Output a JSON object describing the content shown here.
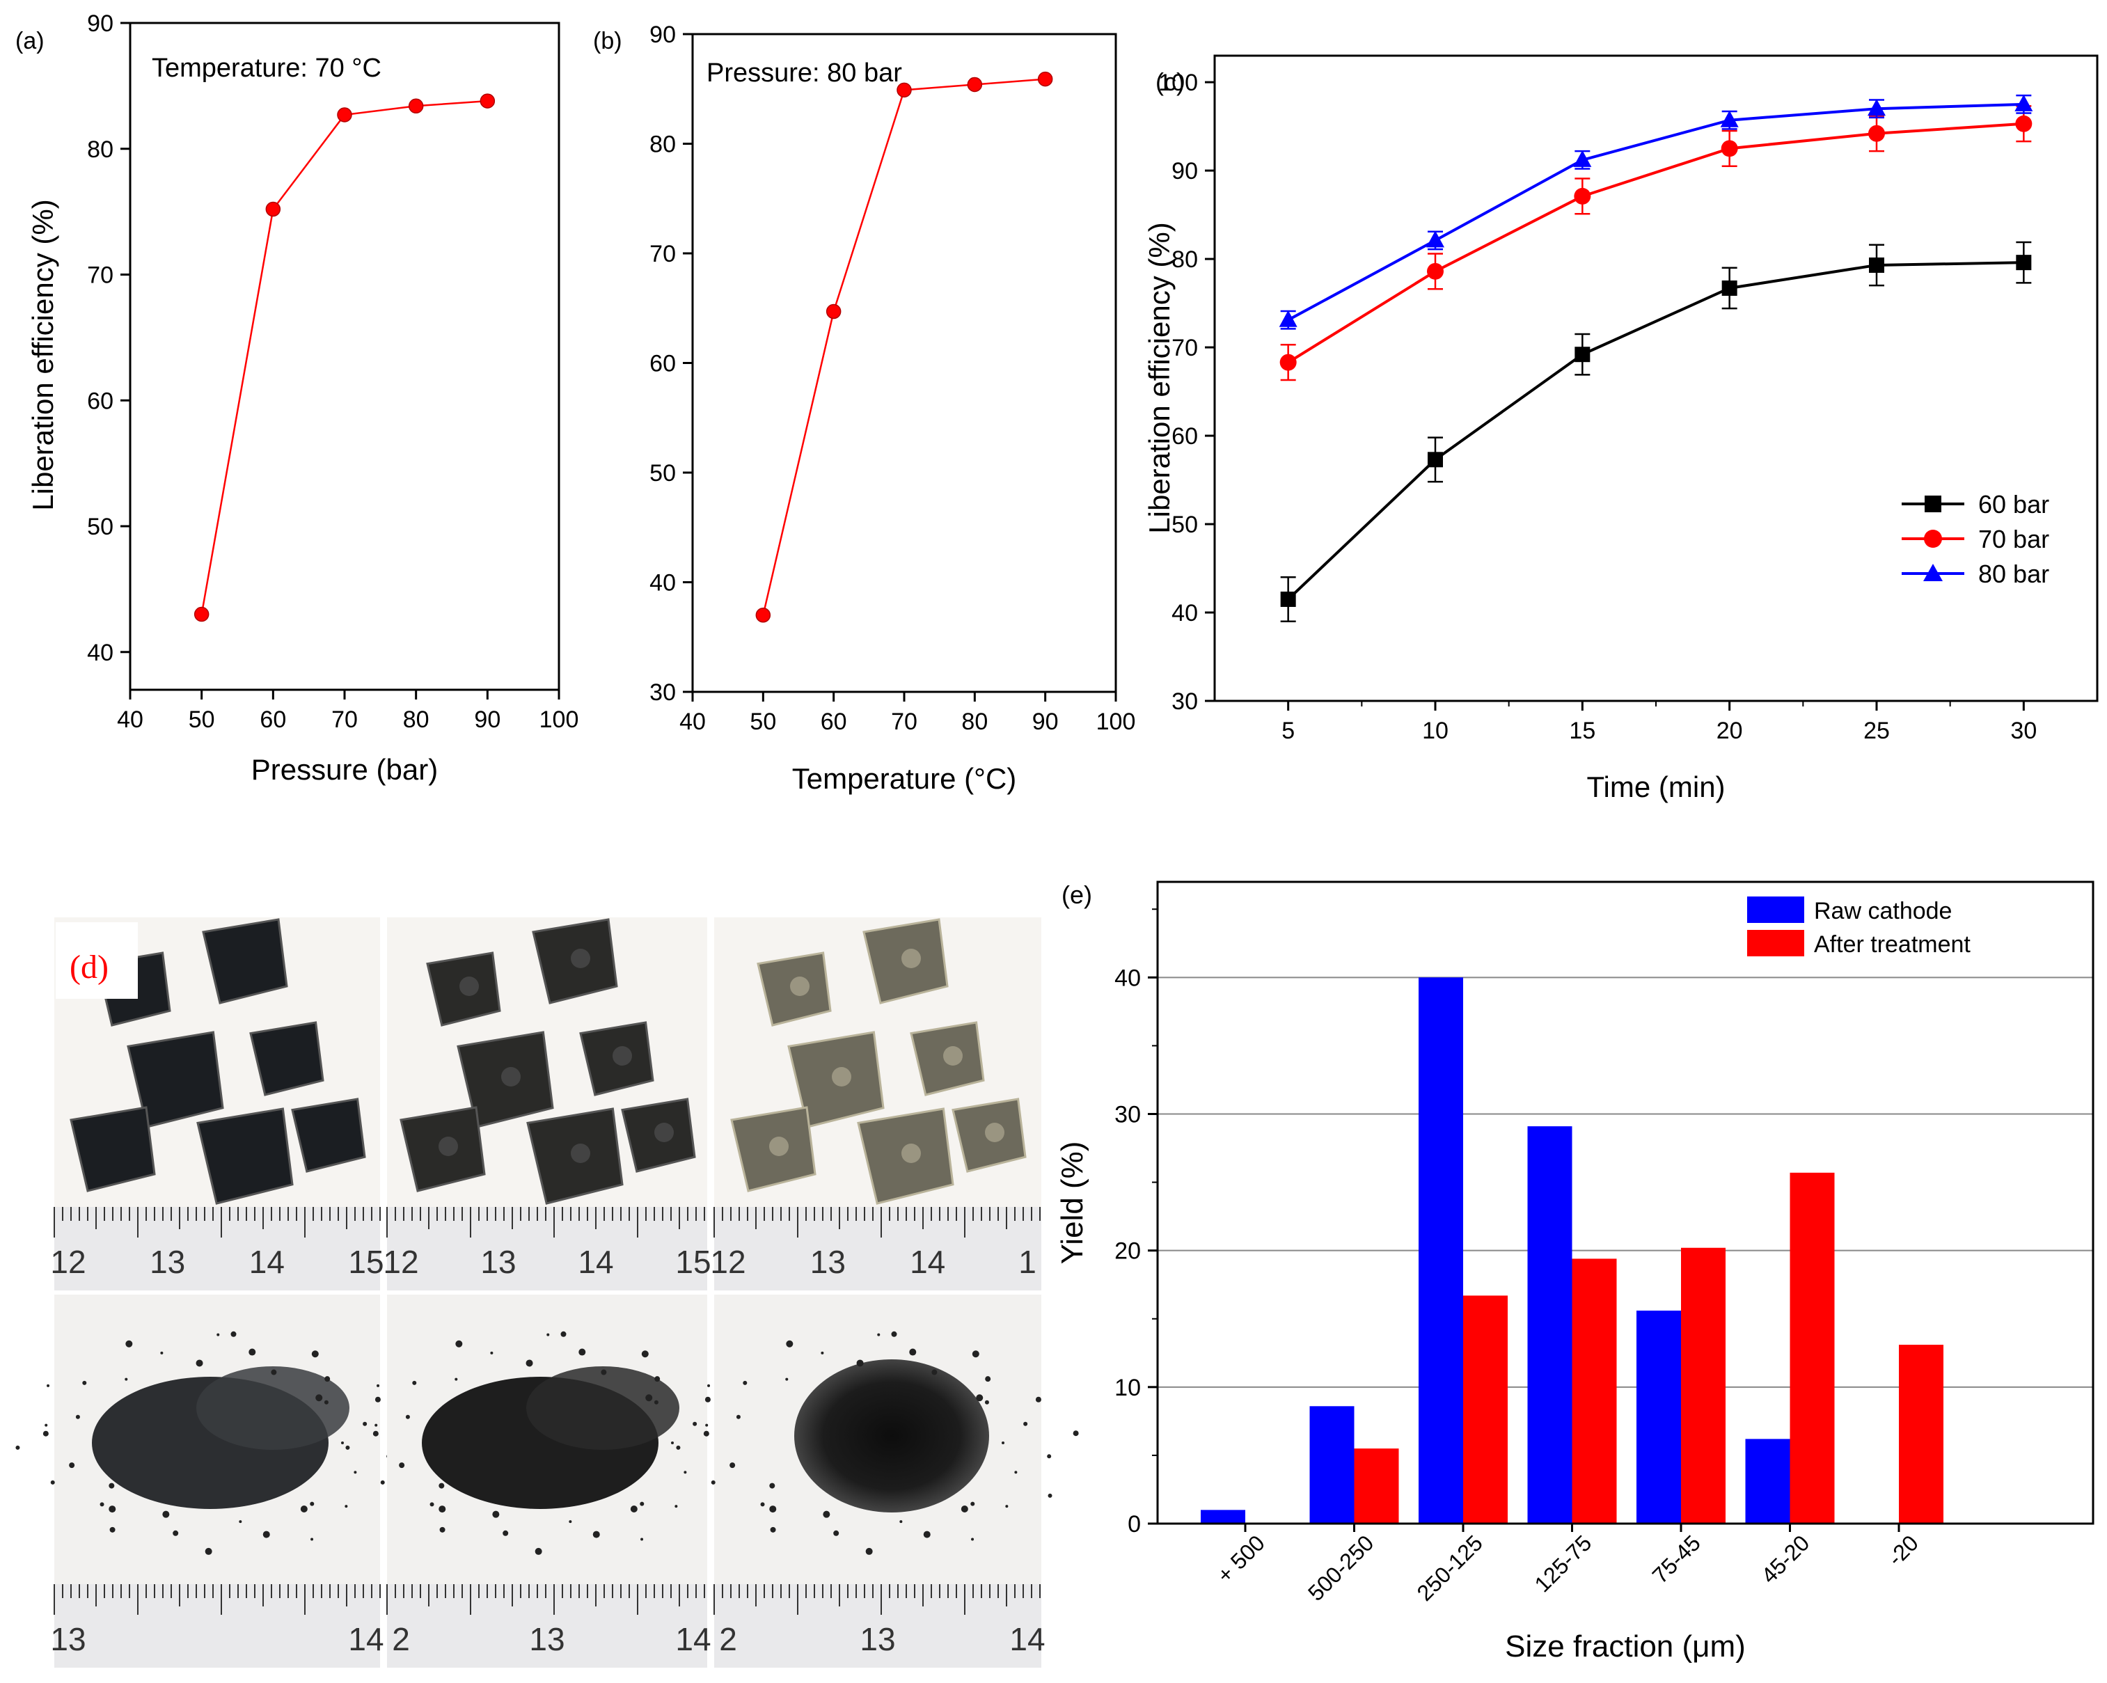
{
  "chart_data": [
    {
      "id": "a",
      "panel_label": "(a)",
      "type": "line",
      "annotation": "Temperature: 70 °C",
      "xlabel": "Pressure (bar)",
      "ylabel": "Liberation efficiency (%)",
      "xlim": [
        40,
        100
      ],
      "ylim": [
        37,
        90
      ],
      "xticks": [
        40,
        50,
        60,
        70,
        80,
        90,
        100
      ],
      "yticks": [
        40,
        50,
        60,
        70,
        80,
        90
      ],
      "x": [
        50,
        60,
        70,
        80,
        90
      ],
      "y": [
        43,
        75.2,
        82.7,
        83.4,
        83.8
      ],
      "color": "#ff0000"
    },
    {
      "id": "b",
      "panel_label": "(b)",
      "type": "line",
      "annotation": "Pressure: 80 bar",
      "xlabel": "Temperature (°C)",
      "ylabel": "",
      "xlim": [
        40,
        100
      ],
      "ylim": [
        30,
        90
      ],
      "xticks": [
        40,
        50,
        60,
        70,
        80,
        90,
        100
      ],
      "yticks": [
        30,
        40,
        50,
        60,
        70,
        80,
        90
      ],
      "x": [
        50,
        60,
        70,
        80,
        90
      ],
      "y": [
        37,
        64.7,
        84.9,
        85.4,
        85.9
      ],
      "color": "#ff0000"
    },
    {
      "id": "c",
      "panel_label": "(c)",
      "type": "line",
      "xlabel": "Time (min)",
      "ylabel": "Liberation efficiency (%)",
      "xlim": [
        2.5,
        32.5
      ],
      "ylim": [
        30,
        103
      ],
      "xticks": [
        5,
        10,
        15,
        20,
        25,
        30
      ],
      "yticks": [
        30,
        40,
        50,
        60,
        70,
        80,
        90,
        100
      ],
      "x": [
        5,
        10,
        15,
        20,
        25,
        30
      ],
      "series": [
        {
          "name": "60 bar",
          "color": "#000000",
          "marker": "square",
          "values": [
            41.5,
            57.3,
            69.2,
            76.7,
            79.3,
            79.6
          ],
          "errors": [
            2.5,
            2.5,
            2.3,
            2.3,
            2.3,
            2.3
          ]
        },
        {
          "name": "70 bar",
          "color": "#ff0000",
          "marker": "circle",
          "values": [
            68.3,
            78.6,
            87.1,
            92.5,
            94.2,
            95.3
          ],
          "errors": [
            2.0,
            2.0,
            2.0,
            2.0,
            2.0,
            2.0
          ]
        },
        {
          "name": "80 bar",
          "color": "#0000ff",
          "marker": "triangle",
          "values": [
            73.1,
            82.1,
            91.2,
            95.7,
            97.0,
            97.5
          ],
          "errors": [
            1.0,
            1.0,
            1.0,
            1.0,
            1.0,
            1.0
          ]
        }
      ],
      "legend_position": "bottom-right"
    },
    {
      "id": "e",
      "panel_label": "(e)",
      "type": "bar",
      "xlabel": "Size fraction (μm)",
      "ylabel": "Yield (%)",
      "ylim": [
        0,
        47
      ],
      "yticks": [
        0,
        10,
        20,
        30,
        40
      ],
      "grid": true,
      "categories": [
        "+ 500",
        "500-250",
        "250-125",
        "125-75",
        "75-45",
        "45-20",
        "-20"
      ],
      "series": [
        {
          "name": "Raw cathode",
          "color": "#0000ff",
          "values": [
            1.0,
            8.6,
            40.0,
            29.1,
            15.6,
            6.2,
            0
          ]
        },
        {
          "name": "After treatment",
          "color": "#ff0000",
          "values": [
            0,
            5.5,
            16.7,
            19.4,
            20.2,
            25.7,
            13.1
          ]
        }
      ],
      "legend_position": "top-right"
    }
  ],
  "photo_panel": {
    "panel_label": "(d)",
    "ruler_labels": [
      [
        "12",
        "13",
        "14",
        "15"
      ],
      [
        "12",
        "13",
        "14",
        "15"
      ],
      [
        "12",
        "13",
        "14",
        "1"
      ],
      [
        "13",
        "14"
      ],
      [
        "2",
        "13",
        "14"
      ],
      [
        "2",
        "13",
        "14"
      ]
    ]
  }
}
